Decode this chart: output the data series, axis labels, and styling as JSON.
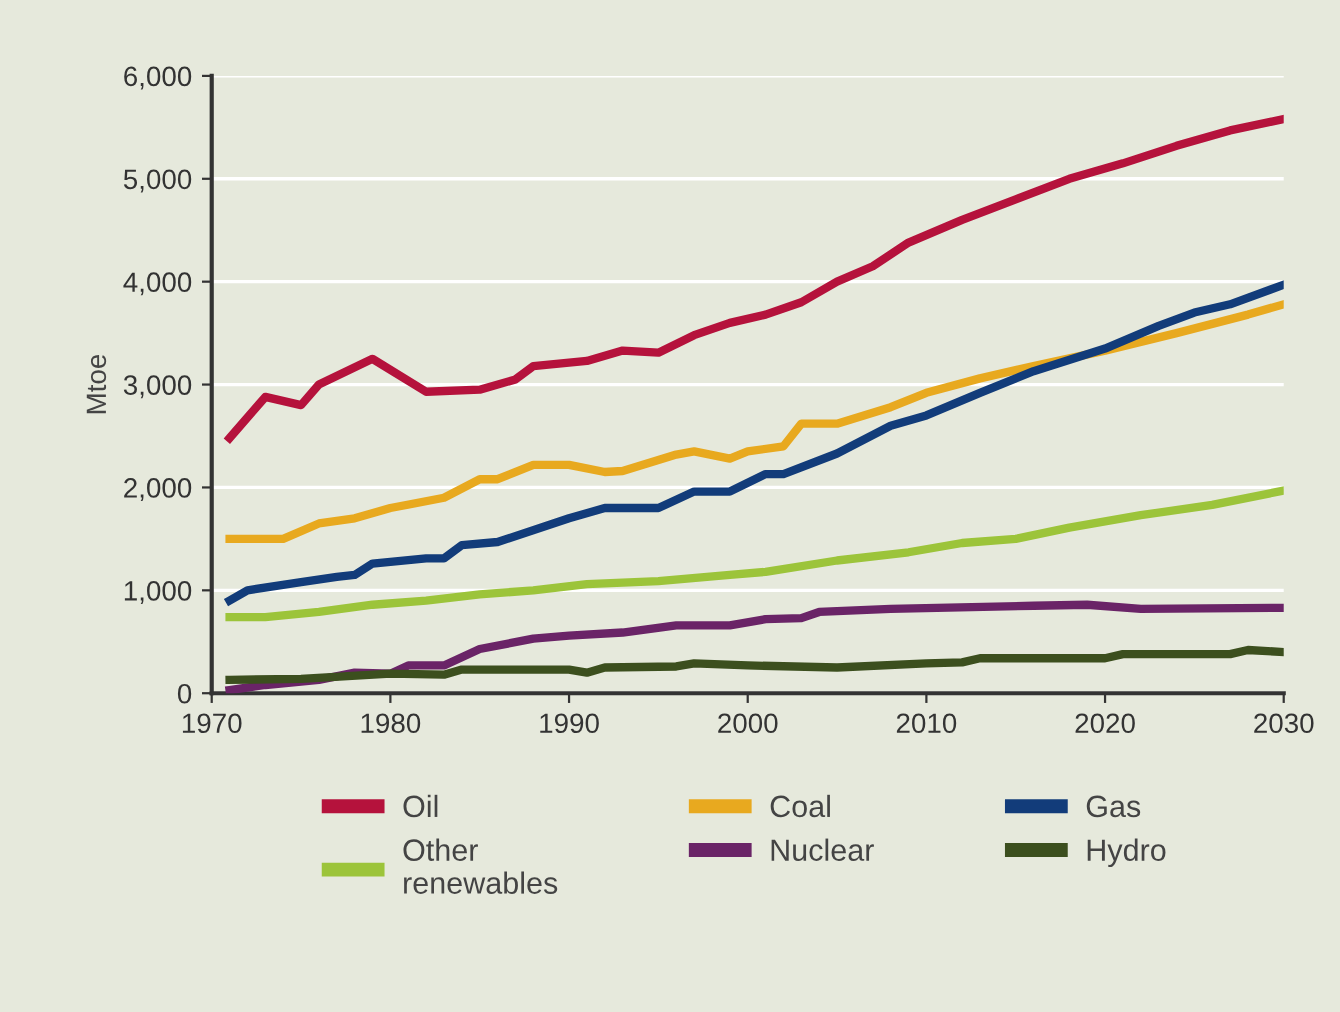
{
  "chart_data": {
    "type": "line",
    "ylabel": "Mtoe",
    "xlim": [
      1970,
      2030
    ],
    "xticks": [
      1970,
      1980,
      1990,
      2000,
      2010,
      2020,
      2030
    ],
    "ylim": [
      0,
      6000
    ],
    "yticks": [
      {
        "value": 0,
        "label": "0"
      },
      {
        "value": 1000,
        "label": "1,000"
      },
      {
        "value": 2000,
        "label": "2,000"
      },
      {
        "value": 3000,
        "label": "3,000"
      },
      {
        "value": 4000,
        "label": "4,000"
      },
      {
        "value": 5000,
        "label": "5,000"
      },
      {
        "value": 6000,
        "label": "6,000"
      }
    ],
    "grid": "y",
    "legend": "bottom",
    "marker": "none",
    "line_style": "solid",
    "series": [
      {
        "name": "Oil",
        "color": "#b5123c",
        "x": [
          1971,
          1973,
          1975,
          1976,
          1979,
          1982,
          1985,
          1987,
          1988,
          1991,
          1993,
          1995,
          1997,
          1999,
          2001,
          2003,
          2005,
          2007,
          2009,
          2012,
          2015,
          2018,
          2021,
          2024,
          2027,
          2030
        ],
        "values": [
          2480,
          2880,
          2800,
          3000,
          3250,
          2930,
          2950,
          3050,
          3180,
          3230,
          3330,
          3310,
          3480,
          3600,
          3680,
          3800,
          4000,
          4150,
          4380,
          4600,
          4800,
          5000,
          5150,
          5320,
          5470,
          5580
        ]
      },
      {
        "name": "Coal",
        "color": "#e8a91f",
        "x": [
          1971,
          1974,
          1976,
          1978,
          1980,
          1983,
          1985,
          1986,
          1988,
          1990,
          1992,
          1993,
          1996,
          1997,
          1999,
          2000,
          2002,
          2003,
          2005,
          2008,
          2010,
          2013,
          2016,
          2020,
          2024,
          2028,
          2030
        ],
        "values": [
          1500,
          1500,
          1650,
          1700,
          1800,
          1900,
          2080,
          2080,
          2220,
          2220,
          2150,
          2160,
          2320,
          2350,
          2280,
          2350,
          2400,
          2620,
          2620,
          2780,
          2920,
          3060,
          3180,
          3330,
          3500,
          3680,
          3780
        ]
      },
      {
        "name": "Gas",
        "color": "#123c7a",
        "x": [
          1971,
          1972,
          1975,
          1977,
          1978,
          1979,
          1982,
          1983,
          1984,
          1986,
          1990,
          1992,
          1995,
          1997,
          1999,
          2001,
          2002,
          2005,
          2008,
          2010,
          2013,
          2016,
          2020,
          2023,
          2025,
          2027,
          2030
        ],
        "values": [
          900,
          1000,
          1080,
          1130,
          1150,
          1260,
          1310,
          1310,
          1440,
          1470,
          1700,
          1800,
          1800,
          1960,
          1960,
          2130,
          2130,
          2330,
          2600,
          2700,
          2920,
          3130,
          3350,
          3570,
          3700,
          3780,
          3970
        ]
      },
      {
        "name": "Other\nrenewables",
        "color": "#9cc43a",
        "x": [
          1971,
          1973,
          1976,
          1979,
          1982,
          1985,
          1988,
          1991,
          1995,
          1999,
          2001,
          2005,
          2009,
          2012,
          2015,
          2018,
          2022,
          2026,
          2030
        ],
        "values": [
          740,
          740,
          790,
          860,
          900,
          960,
          1000,
          1060,
          1090,
          1150,
          1180,
          1290,
          1370,
          1460,
          1500,
          1610,
          1730,
          1830,
          1970
        ]
      },
      {
        "name": "Nuclear",
        "color": "#6a2467",
        "x": [
          1971,
          1973,
          1976,
          1978,
          1980,
          1981,
          1983,
          1985,
          1988,
          1990,
          1993,
          1996,
          1999,
          2001,
          2003,
          2004,
          2008,
          2016,
          2019,
          2022,
          2030
        ],
        "values": [
          30,
          80,
          130,
          200,
          190,
          270,
          270,
          430,
          530,
          560,
          590,
          660,
          660,
          720,
          730,
          790,
          820,
          850,
          860,
          820,
          830
        ]
      },
      {
        "name": "Hydro",
        "color": "#3c4f1e",
        "x": [
          1971,
          1975,
          1980,
          1983,
          1984,
          1990,
          1991,
          1992,
          1996,
          1997,
          2000,
          2005,
          2010,
          2012,
          2013,
          2020,
          2021,
          2027,
          2028,
          2030
        ],
        "values": [
          130,
          140,
          190,
          180,
          230,
          230,
          200,
          250,
          260,
          290,
          270,
          250,
          290,
          300,
          340,
          340,
          380,
          380,
          420,
          400
        ]
      }
    ]
  }
}
